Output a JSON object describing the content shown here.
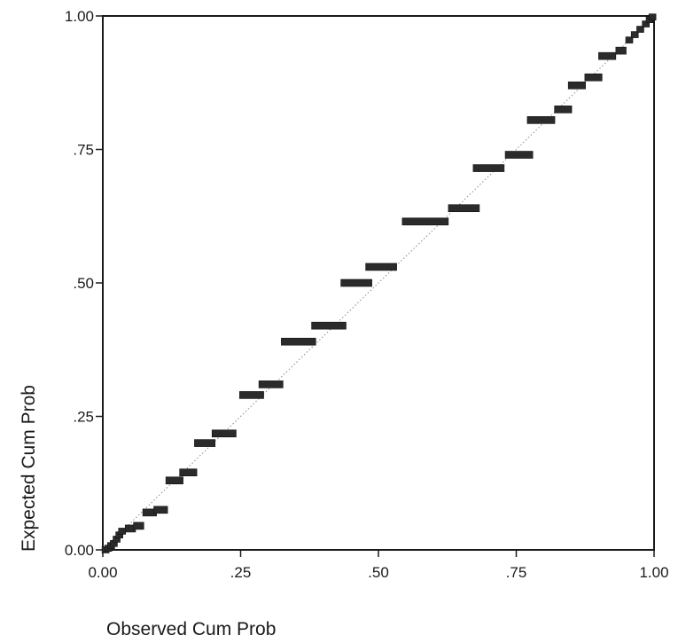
{
  "chart_data": {
    "type": "scatter",
    "xlabel": "Observed Cum Prob",
    "ylabel": "Expected Cum Prob",
    "xlim": [
      0,
      1
    ],
    "ylim": [
      0,
      1
    ],
    "x_ticks": [
      {
        "value": 0.0,
        "label": "0.00"
      },
      {
        "value": 0.25,
        "label": ".25"
      },
      {
        "value": 0.5,
        "label": ".50"
      },
      {
        "value": 0.75,
        "label": ".75"
      },
      {
        "value": 1.0,
        "label": "1.00"
      }
    ],
    "y_ticks": [
      {
        "value": 0.0,
        "label": "0.00"
      },
      {
        "value": 0.25,
        "label": ".25"
      },
      {
        "value": 0.5,
        "label": ".50"
      },
      {
        "value": 0.75,
        "label": ".75"
      },
      {
        "value": 1.0,
        "label": "1.00"
      }
    ],
    "grid": false,
    "reference_line": {
      "from": [
        0,
        0
      ],
      "to": [
        1,
        1
      ],
      "style": "dotted"
    },
    "marker_color": "#2b2b2b",
    "points": [
      {
        "x": 0.005,
        "y": 0.0
      },
      {
        "x": 0.01,
        "y": 0.003
      },
      {
        "x": 0.015,
        "y": 0.008
      },
      {
        "x": 0.02,
        "y": 0.012
      },
      {
        "x": 0.025,
        "y": 0.02
      },
      {
        "x": 0.03,
        "y": 0.028
      },
      {
        "x": 0.035,
        "y": 0.035
      },
      {
        "x": 0.05,
        "y": 0.04
      },
      {
        "x": 0.065,
        "y": 0.045
      },
      {
        "x": 0.085,
        "y": 0.07
      },
      {
        "x": 0.105,
        "y": 0.075
      },
      {
        "x": 0.13,
        "y": 0.13
      },
      {
        "x": 0.155,
        "y": 0.145
      },
      {
        "x": 0.185,
        "y": 0.2
      },
      {
        "x": 0.22,
        "y": 0.218
      },
      {
        "x": 0.27,
        "y": 0.29
      },
      {
        "x": 0.305,
        "y": 0.31
      },
      {
        "x": 0.355,
        "y": 0.39
      },
      {
        "x": 0.41,
        "y": 0.42
      },
      {
        "x": 0.46,
        "y": 0.5
      },
      {
        "x": 0.505,
        "y": 0.53
      },
      {
        "x": 0.585,
        "y": 0.615
      },
      {
        "x": 0.655,
        "y": 0.64
      },
      {
        "x": 0.7,
        "y": 0.715
      },
      {
        "x": 0.755,
        "y": 0.74
      },
      {
        "x": 0.795,
        "y": 0.805
      },
      {
        "x": 0.835,
        "y": 0.825
      },
      {
        "x": 0.86,
        "y": 0.87
      },
      {
        "x": 0.89,
        "y": 0.885
      },
      {
        "x": 0.915,
        "y": 0.925
      },
      {
        "x": 0.94,
        "y": 0.935
      },
      {
        "x": 0.955,
        "y": 0.955
      },
      {
        "x": 0.965,
        "y": 0.965
      },
      {
        "x": 0.975,
        "y": 0.975
      },
      {
        "x": 0.985,
        "y": 0.985
      },
      {
        "x": 0.992,
        "y": 0.993
      },
      {
        "x": 0.997,
        "y": 0.998
      }
    ]
  }
}
